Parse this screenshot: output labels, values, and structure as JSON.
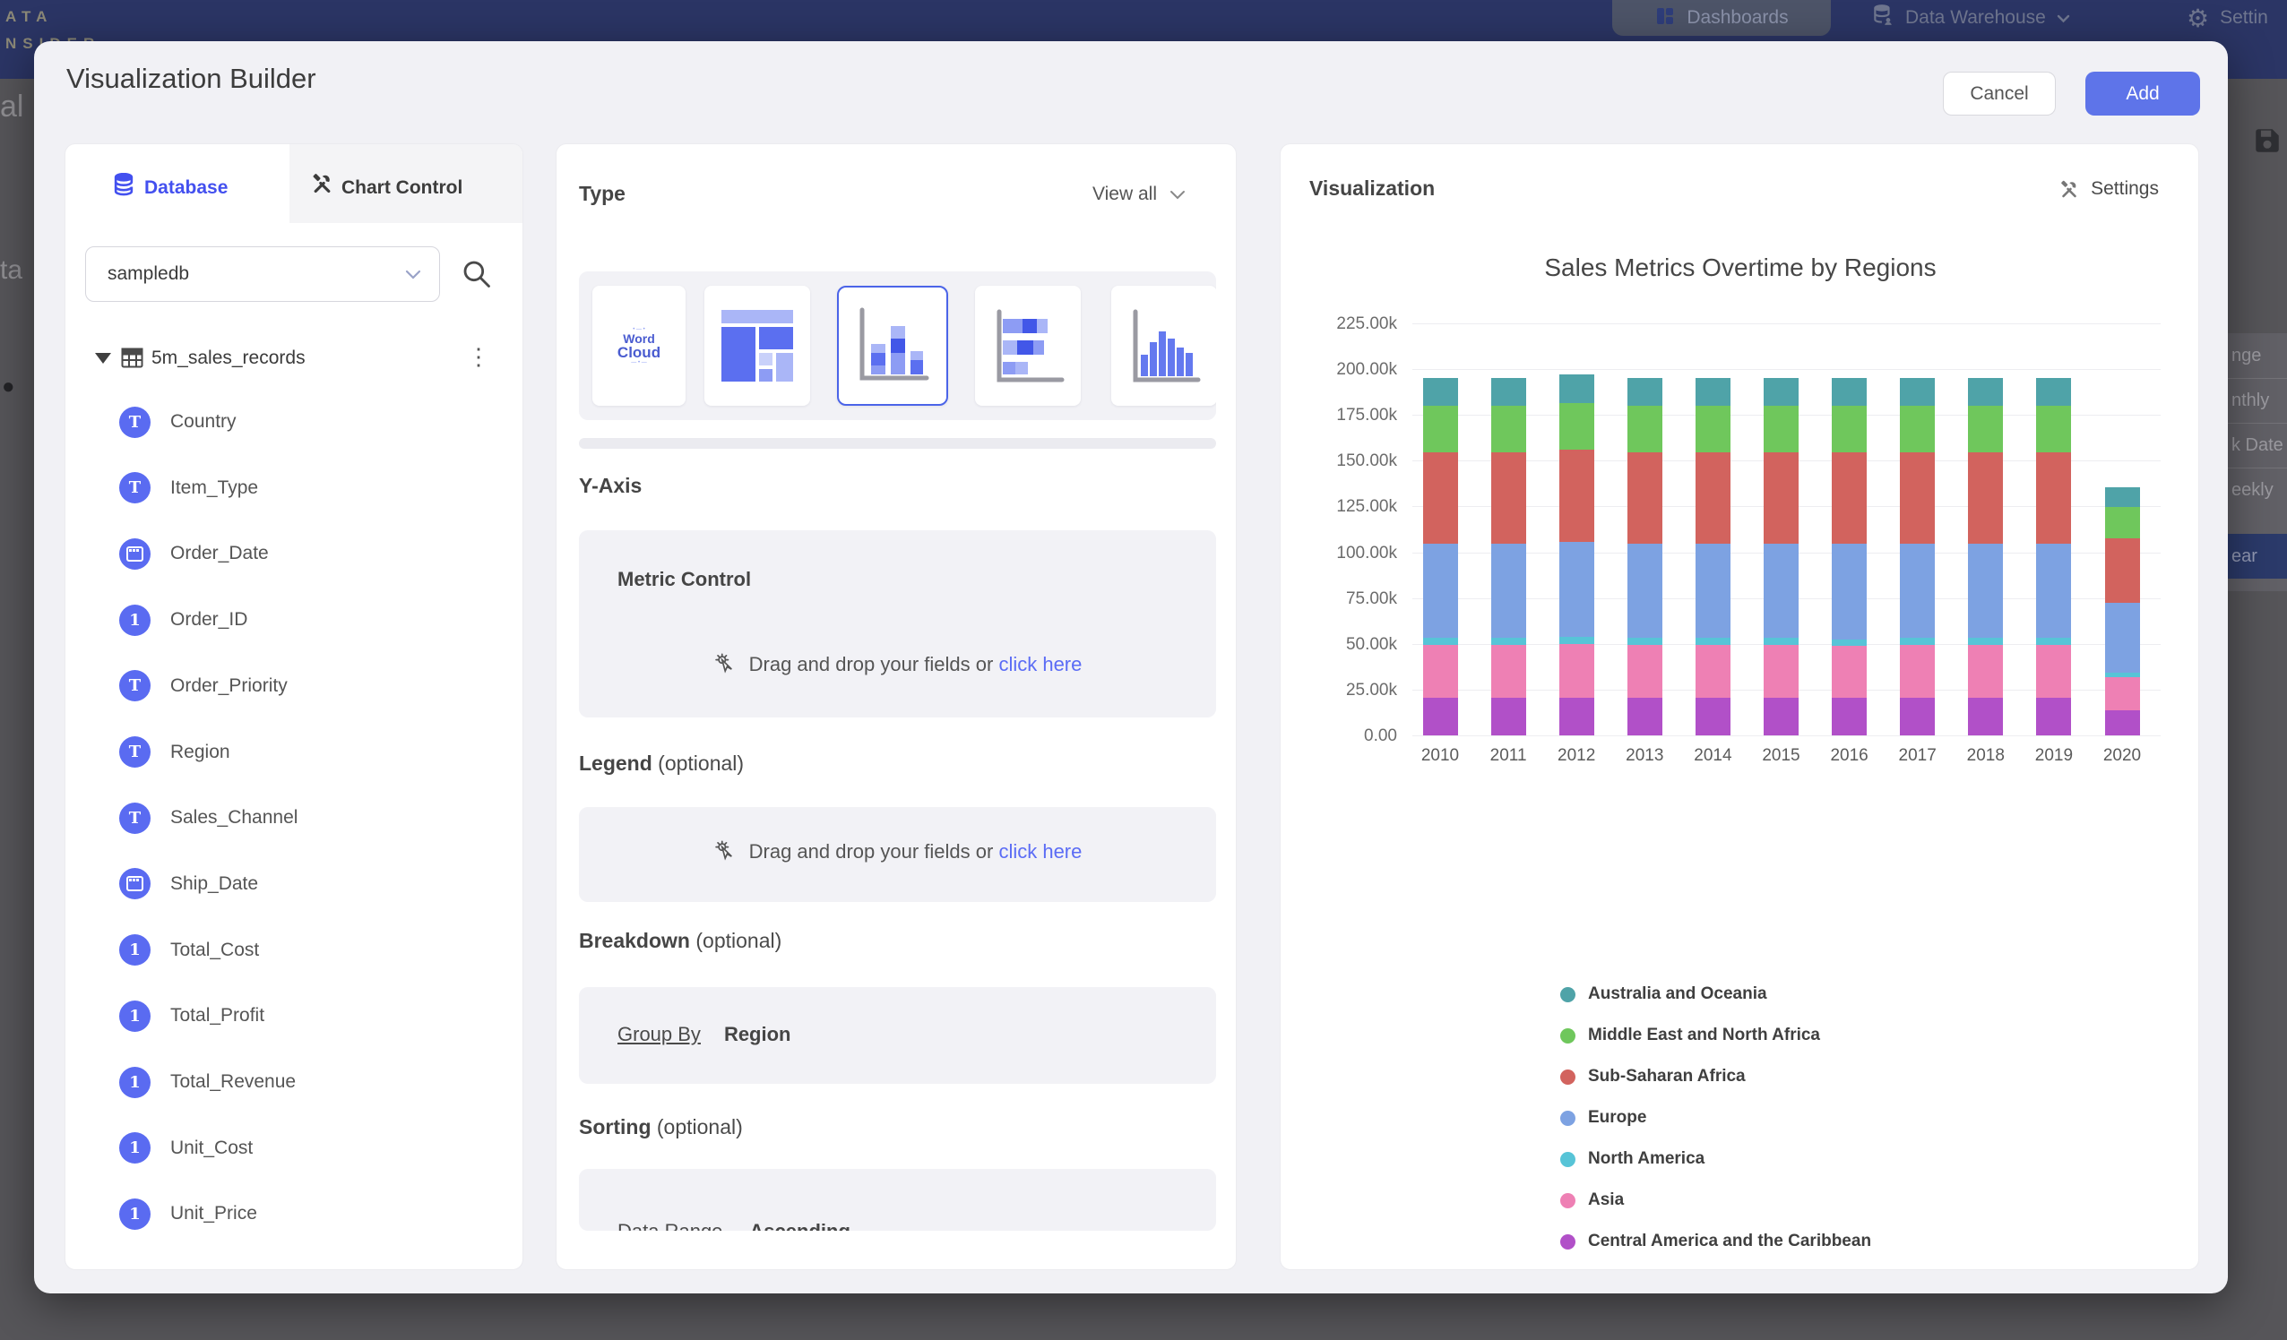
{
  "nav": {
    "logo_line1": "ATA",
    "logo_line2": "NSIDER",
    "dashboards_label": "Dashboards",
    "data_warehouse_label": "Data Warehouse",
    "settings_label": "Settin"
  },
  "background": {
    "left_fragment_1": "al",
    "left_fragment_2": "ta",
    "left_fragment_3": "●",
    "right_menu": {
      "items": [
        {
          "label": "nge",
          "selected": false
        },
        {
          "label": "nthly",
          "selected": false
        },
        {
          "label": "k Date",
          "selected": false
        },
        {
          "label": "eekly",
          "selected": false
        },
        {
          "label": "ear",
          "selected": true
        }
      ]
    }
  },
  "modal": {
    "title": "Visualization Builder",
    "cancel_label": "Cancel",
    "add_label": "Add",
    "database_panel": {
      "tab_database": "Database",
      "tab_chart_control": "Chart Control",
      "db_select_value": "sampledb",
      "table_name": "5m_sales_records",
      "fields": [
        {
          "label": "Country",
          "type": "text"
        },
        {
          "label": "Item_Type",
          "type": "text"
        },
        {
          "label": "Order_Date",
          "type": "date"
        },
        {
          "label": "Order_ID",
          "type": "number"
        },
        {
          "label": "Order_Priority",
          "type": "text"
        },
        {
          "label": "Region",
          "type": "text"
        },
        {
          "label": "Sales_Channel",
          "type": "text"
        },
        {
          "label": "Ship_Date",
          "type": "date"
        },
        {
          "label": "Total_Cost",
          "type": "number"
        },
        {
          "label": "Total_Profit",
          "type": "number"
        },
        {
          "label": "Total_Revenue",
          "type": "number"
        },
        {
          "label": "Unit_Cost",
          "type": "number"
        },
        {
          "label": "Unit_Price",
          "type": "number"
        }
      ]
    },
    "builder_panel": {
      "type_heading": "Type",
      "view_all_label": "View all",
      "word_cloud_word1": "Word",
      "word_cloud_word2": "Cloud",
      "y_axis_heading": "Y-Axis",
      "metric_control_title": "Metric Control",
      "drop_text": "Drag and drop your fields or",
      "drop_link": "click here",
      "legend_heading": "Legend",
      "legend_optional": "(optional)",
      "breakdown_heading": "Breakdown",
      "breakdown_optional": "(optional)",
      "group_by_label": "Group By",
      "group_by_value": "Region",
      "sorting_heading": "Sorting",
      "sorting_optional": "(optional)",
      "sorting_field": "Data Range",
      "sorting_direction": "Ascending"
    },
    "viz_panel": {
      "heading": "Visualization",
      "settings_label": "Settings"
    }
  },
  "chart_data": {
    "type": "bar",
    "stacked": true,
    "title": "Sales Metrics Overtime by Regions",
    "categories": [
      "2010",
      "2011",
      "2012",
      "2013",
      "2014",
      "2015",
      "2016",
      "2017",
      "2018",
      "2019",
      "2020"
    ],
    "unit": "thousands",
    "ylim": [
      0,
      225000
    ],
    "y_ticks": [
      "225.00k",
      "200.00k",
      "175.00k",
      "150.00k",
      "125.00k",
      "100.00k",
      "75.00k",
      "50.00k",
      "25.00k",
      "0.00"
    ],
    "grid": true,
    "legend_position": "bottom-left",
    "series_bottom_to_top": [
      {
        "name": "Central America and the Caribbean",
        "color": "#b150c8",
        "values": [
          20.5,
          20.5,
          20.5,
          20.5,
          20.5,
          20.5,
          20.5,
          20.5,
          20.5,
          20.5,
          13.5
        ]
      },
      {
        "name": "Asia",
        "color": "#ee80b4",
        "values": [
          29,
          29,
          29.5,
          29,
          29,
          29,
          28.5,
          29,
          29,
          29,
          18.5
        ]
      },
      {
        "name": "North America",
        "color": "#57c4d7",
        "values": [
          4,
          4,
          4,
          4,
          4,
          4,
          3.5,
          4,
          4,
          4,
          2
        ]
      },
      {
        "name": "Europe",
        "color": "#7da2e2",
        "values": [
          51,
          51,
          51.5,
          51,
          51,
          51,
          52,
          51,
          51,
          51,
          38.5
        ]
      },
      {
        "name": "Sub-Saharan Africa",
        "color": "#d2635e",
        "values": [
          50,
          50,
          50.5,
          50,
          50,
          50,
          50,
          50,
          50,
          50,
          35
        ]
      },
      {
        "name": "Middle East and North Africa",
        "color": "#6fc75c",
        "values": [
          25.5,
          25.5,
          25.5,
          25.5,
          25.5,
          25.5,
          25.5,
          25.5,
          25.5,
          25.5,
          17
        ]
      },
      {
        "name": "Australia and Oceania",
        "color": "#4fa3a8",
        "values": [
          15,
          15,
          15.5,
          15,
          15,
          15,
          15,
          15,
          15,
          15,
          11
        ]
      }
    ],
    "legend_order_top_to_bottom": [
      "Australia and Oceania",
      "Middle East and North Africa",
      "Sub-Saharan Africa",
      "Europe",
      "North America",
      "Asia",
      "Central America and the Caribbean"
    ]
  }
}
